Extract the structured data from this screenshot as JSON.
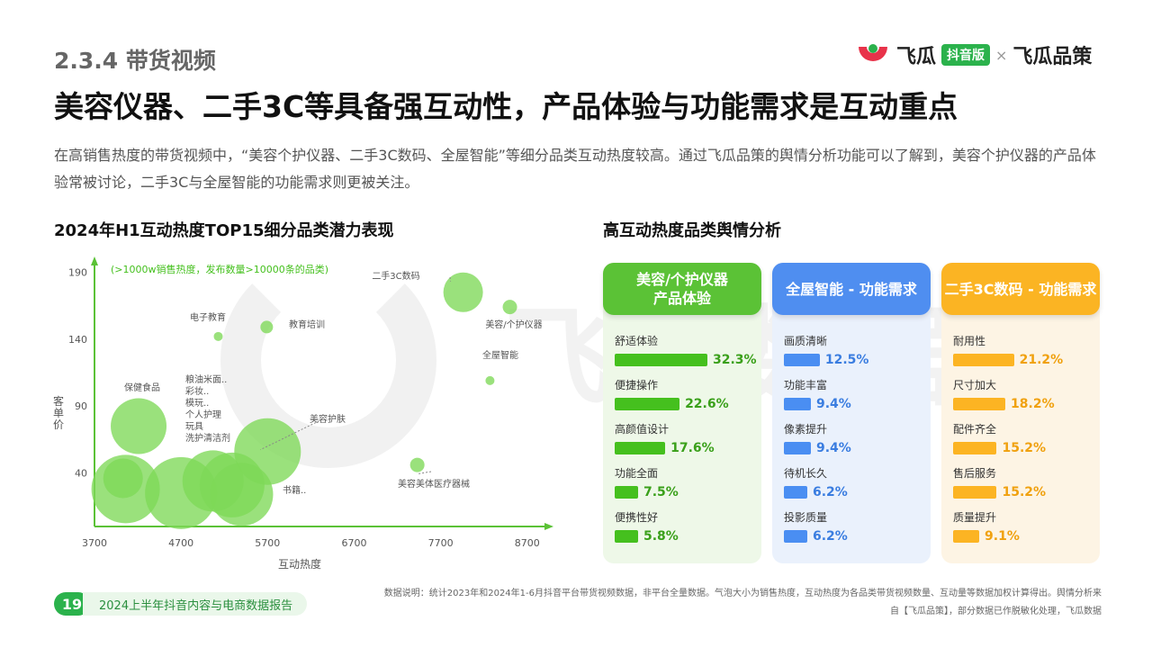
{
  "header": {
    "section": "2.3.4 带货视频",
    "logo_left": "飞瓜",
    "logo_badge": "抖音版",
    "logo_sep": "×",
    "logo_right": "飞瓜品策"
  },
  "headline": "美容仪器、二手3C等具备强互动性，产品体验与功能需求是互动重点",
  "description": "在高销售热度的带货视频中，“美容个护仪器、二手3C数码、全屋智能”等细分品类互动热度较高。通过飞瓜品策的舆情分析功能可以了解到，美容个护仪器的产品体验常被讨论，二手3C与全屋智能的功能需求则更被关注。",
  "watermark": "飞瓜数据",
  "left_title": "2024年H1互动热度TOP15细分品类潜力表现",
  "right_title": "高互动热度品类舆情分析",
  "chart_data": {
    "type": "scatter",
    "title": "2024年H1互动热度TOP15细分品类潜力表现",
    "annotation": "(>1000w销售热度，发布数量>10000条的品类)",
    "xlabel": "互动热度",
    "ylabel": "客单价",
    "x_ticks": [
      "3700",
      "4700",
      "5700",
      "6700",
      "7700",
      "8700"
    ],
    "y_ticks": [
      "40",
      "90",
      "140",
      "190"
    ],
    "xlim": [
      3700,
      8900
    ],
    "ylim": [
      0,
      195
    ],
    "color": "#7ed957",
    "points": [
      {
        "label": "二手3C数码",
        "x": 7960,
        "y": 175,
        "size": 22
      },
      {
        "label": "美容/个护仪器",
        "x": 8500,
        "y": 164,
        "size": 8
      },
      {
        "label": "教育培训",
        "x": 5690,
        "y": 149,
        "size": 7
      },
      {
        "label": "电子教育",
        "x": 5130,
        "y": 142,
        "size": 5
      },
      {
        "label": "全屋智能",
        "x": 8270,
        "y": 109,
        "size": 5
      },
      {
        "label": "保健食品",
        "x": 4210,
        "y": 75,
        "size": 31
      },
      {
        "label": "美容护肤",
        "x": 5700,
        "y": 56,
        "size": 37
      },
      {
        "label": "美容美体医疗器械",
        "x": 7430,
        "y": 46,
        "size": 8
      },
      {
        "label": "",
        "x": 4060,
        "y": 28,
        "size": 38
      },
      {
        "label": "",
        "x": 4030,
        "y": 36,
        "size": 22
      },
      {
        "label": "",
        "x": 4700,
        "y": 25,
        "size": 40
      },
      {
        "label": "",
        "x": 5070,
        "y": 34,
        "size": 34
      },
      {
        "label": "",
        "x": 5290,
        "y": 31,
        "size": 36
      },
      {
        "label": "书籍..",
        "x": 5400,
        "y": 24,
        "size": 35
      }
    ],
    "cluster_labels": [
      "粮油米面..",
      "彩妆..",
      "模玩..",
      "个人护理",
      "玩具",
      "洗护清洁剂"
    ]
  },
  "panels": [
    {
      "title": "美容/个护仪器\n产品体验",
      "head_color": "#5bc236",
      "bg": "#eef8e8",
      "bar_color": "#45c01e",
      "val_color": "#3aa01a",
      "items": [
        {
          "label": "舒适体验",
          "value": 32.3,
          "text": "32.3%"
        },
        {
          "label": "便捷操作",
          "value": 22.6,
          "text": "22.6%"
        },
        {
          "label": "高颜值设计",
          "value": 17.6,
          "text": "17.6%"
        },
        {
          "label": "功能全面",
          "value": 7.5,
          "text": "7.5%"
        },
        {
          "label": "便携性好",
          "value": 5.8,
          "text": "5.8%"
        }
      ]
    },
    {
      "title": "全屋智能 - 功能需求",
      "head_color": "#4f8ef0",
      "bg": "#eaf1fc",
      "bar_color": "#4a8ef2",
      "val_color": "#3a7de0",
      "items": [
        {
          "label": "画质清晰",
          "value": 12.5,
          "text": "12.5%"
        },
        {
          "label": "功能丰富",
          "value": 9.4,
          "text": "9.4%"
        },
        {
          "label": "像素提升",
          "value": 9.4,
          "text": "9.4%"
        },
        {
          "label": "待机长久",
          "value": 6.2,
          "text": "6.2%"
        },
        {
          "label": "投影质量",
          "value": 6.2,
          "text": "6.2%"
        }
      ]
    },
    {
      "title": "二手3C数码 - 功能需求",
      "head_color": "#fbb423",
      "bg": "#fdf4e4",
      "bar_color": "#fcb423",
      "val_color": "#f0a10f",
      "items": [
        {
          "label": "耐用性",
          "value": 21.2,
          "text": "21.2%"
        },
        {
          "label": "尺寸加大",
          "value": 18.2,
          "text": "18.2%"
        },
        {
          "label": "配件齐全",
          "value": 15.2,
          "text": "15.2%"
        },
        {
          "label": "售后服务",
          "value": 15.2,
          "text": "15.2%"
        },
        {
          "label": "质量提升",
          "value": 9.1,
          "text": "9.1%"
        }
      ]
    }
  ],
  "footer": {
    "page": "19",
    "report": "2024上半年抖音内容与电商数据报告",
    "note_line1": "数据说明：统计2023年和2024年1-6月抖音平台带货视频数据，非平台全量数据。气泡大小为销售热度，互动热度为各品类带货视频数量、互动量等数据加权计算得出。舆情分析来",
    "note_line2": "自【飞瓜品策】，部分数据已作脱敏化处理，飞瓜数据"
  }
}
